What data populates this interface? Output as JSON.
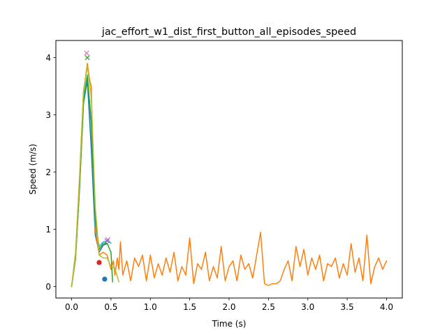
{
  "chart_data": {
    "type": "line",
    "title": "jac_effort_w1_dist_first_button_all_episodes_speed",
    "xlabel": "Time (s)",
    "ylabel": "Speed (m/s)",
    "xlim": [
      -0.2,
      4.2
    ],
    "ylim": [
      -0.2,
      4.3
    ],
    "xticks": [
      0.0,
      0.5,
      1.0,
      1.5,
      2.0,
      2.5,
      3.0,
      3.5,
      4.0
    ],
    "xtick_labels": [
      "0.0",
      "0.5",
      "1.0",
      "1.5",
      "2.0",
      "2.5",
      "3.0",
      "3.5",
      "4.0"
    ],
    "yticks": [
      0,
      1,
      2,
      3,
      4
    ],
    "ytick_labels": [
      "0",
      "1",
      "2",
      "3",
      "4"
    ],
    "grid": false,
    "legend": "none",
    "series": [
      {
        "color": "#1f77b4",
        "x": [
          0.0,
          0.05,
          0.1,
          0.15,
          0.2,
          0.25,
          0.3,
          0.35,
          0.4,
          0.45
        ],
        "y": [
          0.0,
          0.5,
          1.7,
          3.2,
          3.6,
          2.4,
          0.9,
          0.6,
          0.72,
          0.75
        ],
        "markers": [
          {
            "x": 0.42,
            "y": 0.13,
            "shape": "circle"
          }
        ]
      },
      {
        "color": "#ff7f0e",
        "x": [
          0.0,
          0.05,
          0.1,
          0.15,
          0.2,
          0.23,
          0.25,
          0.27,
          0.3,
          0.35,
          0.4,
          0.45,
          0.5,
          0.53,
          0.55,
          0.58,
          0.6,
          0.62,
          0.65,
          0.7,
          0.75,
          0.8,
          0.85,
          0.9,
          0.95,
          1.0,
          1.05,
          1.1,
          1.15,
          1.2,
          1.25,
          1.3,
          1.35,
          1.4,
          1.45,
          1.5,
          1.55,
          1.6,
          1.65,
          1.7,
          1.75,
          1.8,
          1.85,
          1.9,
          1.95,
          2.0,
          2.05,
          2.1,
          2.15,
          2.2,
          2.25,
          2.3,
          2.35,
          2.4,
          2.45,
          2.5,
          2.55,
          2.6,
          2.65,
          2.7,
          2.75,
          2.8,
          2.85,
          2.9,
          2.95,
          3.0,
          3.05,
          3.1,
          3.15,
          3.2,
          3.25,
          3.3,
          3.35,
          3.4,
          3.45,
          3.5,
          3.55,
          3.6,
          3.65,
          3.7,
          3.75,
          3.8,
          3.85,
          3.9,
          3.95,
          4.0
        ],
        "y": [
          0.0,
          0.6,
          1.9,
          3.4,
          3.9,
          3.6,
          3.5,
          2.4,
          1.0,
          0.55,
          0.6,
          0.55,
          0.3,
          0.45,
          0.2,
          0.5,
          0.3,
          0.78,
          0.2,
          0.45,
          0.1,
          0.5,
          0.35,
          0.55,
          0.1,
          0.55,
          0.15,
          0.4,
          0.2,
          0.5,
          0.25,
          0.6,
          0.1,
          0.35,
          0.2,
          0.85,
          0.05,
          0.4,
          0.3,
          0.6,
          0.1,
          0.35,
          0.15,
          0.7,
          0.1,
          0.35,
          0.45,
          0.1,
          0.55,
          0.3,
          0.4,
          0.15,
          0.55,
          0.95,
          0.05,
          0.02,
          0.05,
          0.05,
          0.1,
          0.3,
          0.45,
          0.1,
          0.7,
          0.35,
          0.65,
          0.2,
          0.5,
          0.3,
          0.55,
          0.1,
          0.4,
          0.35,
          0.5,
          0.15,
          0.4,
          0.2,
          0.75,
          0.25,
          0.5,
          0.1,
          0.9,
          0.05,
          0.35,
          0.5,
          0.3,
          0.45
        ],
        "markers": []
      },
      {
        "color": "#d62728",
        "x": [],
        "y": [],
        "markers": [
          {
            "x": 0.35,
            "y": 0.42,
            "shape": "circle"
          }
        ]
      },
      {
        "color": "#17becf",
        "x": [
          0.0,
          0.05,
          0.1,
          0.15,
          0.2,
          0.25,
          0.3,
          0.35,
          0.4,
          0.45,
          0.5
        ],
        "y": [
          0.0,
          0.55,
          1.8,
          3.3,
          3.7,
          2.8,
          1.1,
          0.7,
          0.78,
          0.8,
          0.76
        ],
        "markers": []
      },
      {
        "color": "#2ca02c",
        "x": [
          0.0,
          0.05,
          0.1,
          0.15,
          0.2,
          0.25,
          0.3,
          0.35,
          0.4,
          0.45,
          0.5,
          0.52
        ],
        "y": [
          0.0,
          0.5,
          1.7,
          3.2,
          3.65,
          2.9,
          1.2,
          0.65,
          0.75,
          0.76,
          0.6,
          0.08
        ],
        "markers": [
          {
            "x": 0.2,
            "y": 4.0,
            "shape": "x"
          }
        ]
      },
      {
        "color": "#bcbd22",
        "x": [
          0.0,
          0.05,
          0.1,
          0.15,
          0.2,
          0.25,
          0.3,
          0.35,
          0.4,
          0.45,
          0.5,
          0.55,
          0.6
        ],
        "y": [
          0.0,
          0.55,
          1.85,
          3.4,
          3.85,
          3.3,
          1.4,
          0.55,
          0.5,
          0.5,
          0.35,
          0.32,
          0.08
        ],
        "markers": []
      },
      {
        "color": "#e377c2",
        "x": [],
        "y": [],
        "markers": [
          {
            "x": 0.19,
            "y": 4.08,
            "shape": "x"
          },
          {
            "x": 0.46,
            "y": 0.82,
            "shape": "x"
          }
        ]
      },
      {
        "color": "#9467bd",
        "x": [],
        "y": [],
        "markers": [
          {
            "x": 0.45,
            "y": 0.8,
            "shape": "x"
          }
        ]
      }
    ]
  }
}
